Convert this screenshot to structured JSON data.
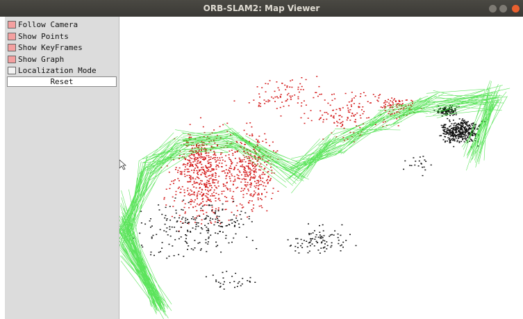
{
  "window": {
    "title": "ORB-SLAM2: Map Viewer"
  },
  "panel": {
    "options": [
      {
        "label": "Follow Camera",
        "checked": true
      },
      {
        "label": "Show Points",
        "checked": true
      },
      {
        "label": "Show KeyFrames",
        "checked": true
      },
      {
        "label": "Show Graph",
        "checked": true
      },
      {
        "label": "Localization Mode",
        "checked": false
      }
    ],
    "reset": "Reset"
  }
}
